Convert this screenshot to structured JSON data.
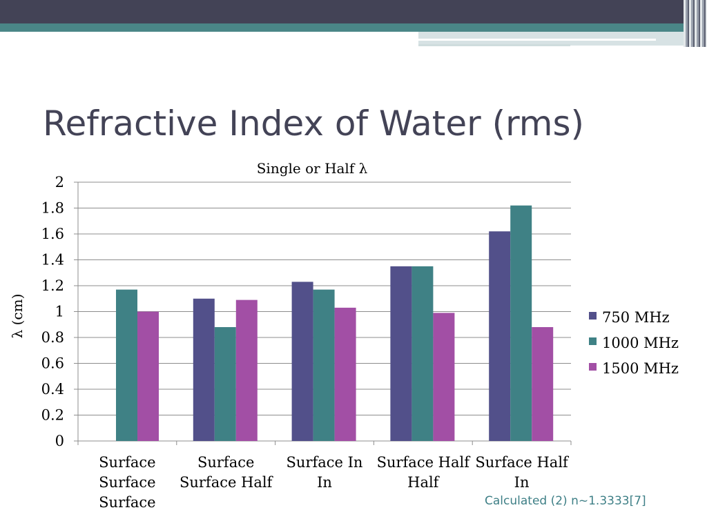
{
  "slide": {
    "title": "Refractive Index of Water (rms)",
    "footnote": "Calculated (2) n~1.3333[7]"
  },
  "colors": {
    "banner_dark": "#434356",
    "banner_teal": "#4a8687",
    "title_text": "#434356",
    "footnote_text": "#3e7f86"
  },
  "chart_data": {
    "type": "bar",
    "title": "Single or Half λ",
    "xlabel": "",
    "ylabel": "λ (cm)",
    "ylim": [
      0,
      2
    ],
    "yticks": [
      "0",
      "0.2",
      "0.4",
      "0.6",
      "0.8",
      "1",
      "1.2",
      "1.4",
      "1.6",
      "1.8",
      "2"
    ],
    "grid": true,
    "legend_position": "right",
    "categories": [
      [
        "Surface",
        "Surface",
        "Surface"
      ],
      [
        "Surface",
        "Surface Half"
      ],
      [
        "Surface In",
        "In"
      ],
      [
        "Surface Half",
        "Half"
      ],
      [
        "Surface Half",
        "In"
      ]
    ],
    "series": [
      {
        "name": "750 MHz",
        "color": "#52508a",
        "values": [
          0,
          1.1,
          1.23,
          1.35,
          1.62
        ]
      },
      {
        "name": "1000 MHz",
        "color": "#3f8185",
        "values": [
          1.17,
          0.88,
          1.17,
          1.35,
          1.82
        ]
      },
      {
        "name": "1500 MHz",
        "color": "#a24fa5",
        "values": [
          1.0,
          1.09,
          1.03,
          0.99,
          0.88
        ]
      }
    ]
  }
}
